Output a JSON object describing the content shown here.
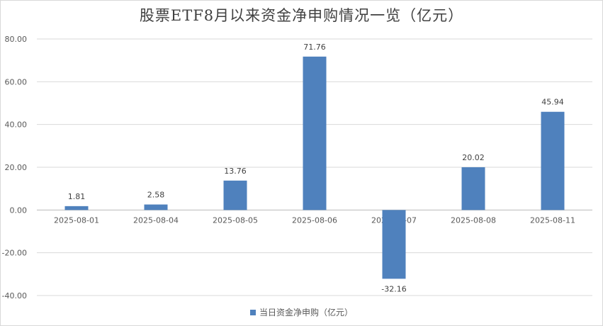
{
  "chart_data": {
    "type": "bar",
    "title": "股票ETF8月以来资金净申购情况一览（亿元）",
    "categories": [
      "2025-08-01",
      "2025-08-04",
      "2025-08-05",
      "2025-08-06",
      "2025-08-07",
      "2025-08-08",
      "2025-08-11"
    ],
    "series": [
      {
        "name": "当日资金净申购（亿元）",
        "values": [
          1.81,
          2.58,
          13.76,
          71.76,
          -32.16,
          20.02,
          45.94
        ],
        "labels": [
          "1.81",
          "2.58",
          "13.76",
          "71.76",
          "-32.16",
          "20.02",
          "45.94"
        ],
        "color": "#4f81bd"
      }
    ],
    "ylim": [
      -40,
      80
    ],
    "yticks": [
      -40,
      -20,
      0,
      20,
      40,
      60,
      80
    ],
    "ytick_labels": [
      "-40.00",
      "-20.00",
      "0.00",
      "20.00",
      "40.00",
      "60.00",
      "80.00"
    ],
    "grid": true,
    "legend_position": "bottom"
  }
}
